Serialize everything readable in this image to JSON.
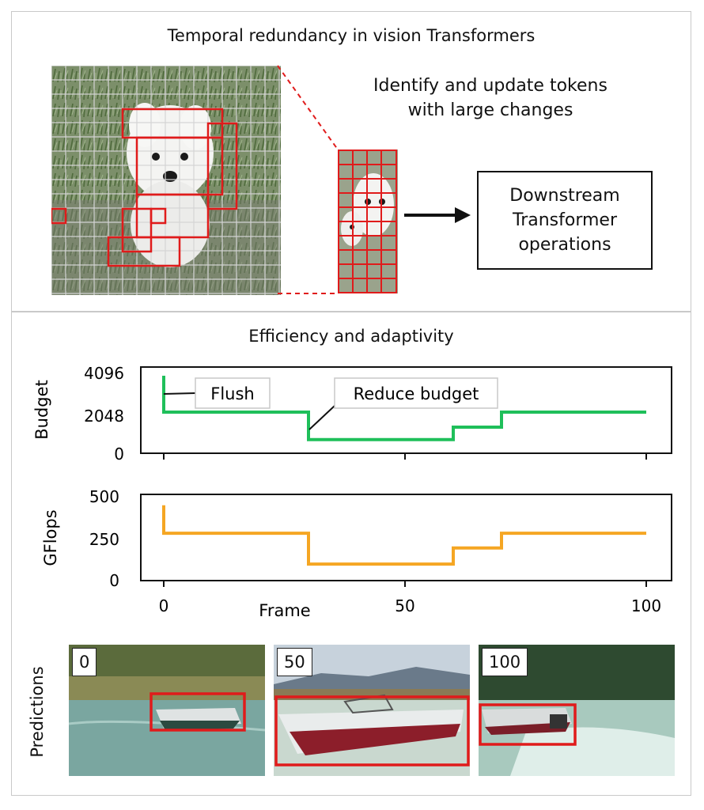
{
  "top": {
    "title": "Temporal redundancy in vision Transformers",
    "annotation_line1": "Identify and update tokens",
    "annotation_line2": "with large changes",
    "downstream_line1": "Downstream",
    "downstream_line2": "Transformer",
    "downstream_line3": "operations"
  },
  "bottom": {
    "title": "Efficiency and adaptivity",
    "predictions_label": "Predictions",
    "thumbnails": [
      {
        "frame": "0"
      },
      {
        "frame": "50"
      },
      {
        "frame": "100"
      }
    ]
  },
  "colors": {
    "budget_line": "#1fbf5a",
    "gflops_line": "#f5a623",
    "token_box": "#e01b1b"
  },
  "chart_data": [
    {
      "type": "line",
      "title": "",
      "xlabel": "",
      "ylabel": "Budget",
      "yticks": [
        "0",
        "2048",
        "4096"
      ],
      "xticks": [
        "0",
        "50",
        "100"
      ],
      "xlim": [
        0,
        100
      ],
      "ylim": [
        0,
        4096
      ],
      "annotations": [
        "Flush",
        "Reduce budget"
      ],
      "series": [
        {
          "x": [
            0,
            0,
            30,
            30,
            60,
            60,
            70,
            70,
            100
          ],
          "y": [
            4096,
            2048,
            2048,
            500,
            500,
            1200,
            1200,
            2048,
            2048
          ]
        }
      ]
    },
    {
      "type": "line",
      "title": "",
      "xlabel": "Frame",
      "ylabel": "GFlops",
      "yticks": [
        "0",
        "250",
        "500"
      ],
      "xticks": [
        "0",
        "50",
        "100"
      ],
      "xlim": [
        0,
        100
      ],
      "ylim": [
        0,
        500
      ],
      "series": [
        {
          "x": [
            0,
            0,
            30,
            30,
            60,
            60,
            70,
            70,
            100
          ],
          "y": [
            480,
            290,
            290,
            80,
            80,
            190,
            190,
            290,
            290
          ]
        }
      ]
    }
  ]
}
